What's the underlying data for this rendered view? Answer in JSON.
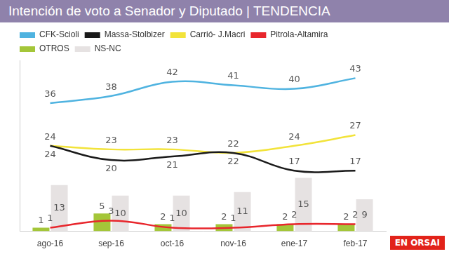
{
  "chart_data": {
    "type": "line",
    "title": "Intención de voto a Senador y Diputado | TENDENCIA",
    "categories": [
      "ago-16",
      "sep-16",
      "oct-16",
      "nov-16",
      "ene-17",
      "feb-17"
    ],
    "series": [
      {
        "name": "CFK-Scioli",
        "color": "#4fb3e0",
        "type": "line",
        "values": [
          36,
          38,
          42,
          41,
          40,
          43
        ]
      },
      {
        "name": "Massa-Stolbizer",
        "color": "#1a1a1a",
        "type": "line",
        "values": [
          24,
          20,
          21,
          22,
          17,
          17
        ]
      },
      {
        "name": "Carrió- J.Macri",
        "color": "#f2e33a",
        "type": "line",
        "values": [
          24,
          23,
          23,
          22,
          24,
          27
        ]
      },
      {
        "name": "Pitrola-Altamira",
        "color": "#e8262c",
        "type": "line",
        "values": [
          1,
          3,
          1,
          1,
          2,
          2
        ]
      },
      {
        "name": "OTROS",
        "color": "#a4c639",
        "type": "bar",
        "values": [
          1,
          5,
          2,
          2,
          2,
          2
        ]
      },
      {
        "name": "NS-NC",
        "color": "#e6e2e2",
        "type": "bar",
        "values": [
          13,
          10,
          10,
          11,
          15,
          9
        ]
      }
    ],
    "ylim": [
      0,
      48
    ],
    "tick_labels": "x",
    "grid": false,
    "legend": "top-left",
    "data_labels": true,
    "annotations": [
      "EN ORSAI"
    ]
  }
}
